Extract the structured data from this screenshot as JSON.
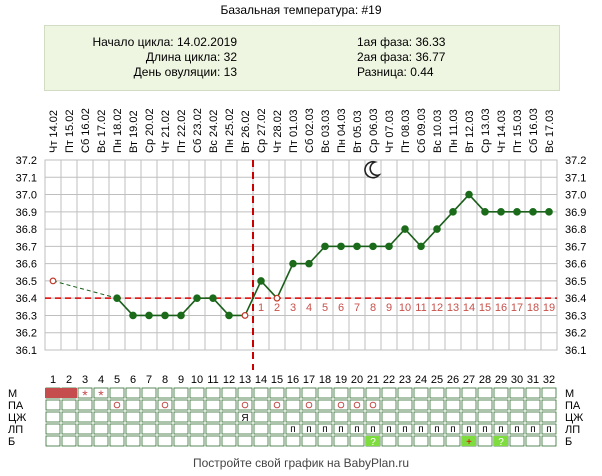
{
  "title": "Базальная температура: #19",
  "info": {
    "cycle_start_label": "Начало цикла:",
    "cycle_start": "14.02.2019",
    "cycle_length_label": "Длина цикла:",
    "cycle_length": "32",
    "ovulation_day_label": "День овуляции:",
    "ovulation_day": "13",
    "phase1_label": "1ая фаза:",
    "phase1": "36.33",
    "phase2_label": "2ая фаза:",
    "phase2": "36.77",
    "diff_label": "Разница:",
    "diff": "0.44"
  },
  "footer": "Постройте свой график на BabyPlan.ru",
  "colors": {
    "line": "#1a5e1a",
    "point_fill": "#1b6b1b",
    "coverline": "#dd0000",
    "ovulation_line": "#cc0000",
    "grid": "#bfbfbf",
    "day_numbers_after": "#c8504b",
    "period": "#c64d4d",
    "ovulation_test": "#7fdc3f"
  },
  "chart_data": {
    "type": "line",
    "ylim": [
      36.1,
      37.2
    ],
    "yticks": [
      "36.1",
      "36.2",
      "36.3",
      "36.4",
      "36.5",
      "36.6",
      "36.7",
      "36.8",
      "36.9",
      "37.0",
      "37.1",
      "37.2"
    ],
    "cycle_days": [
      "1",
      "2",
      "3",
      "4",
      "5",
      "6",
      "7",
      "8",
      "9",
      "10",
      "11",
      "12",
      "13",
      "14",
      "15",
      "16",
      "17",
      "18",
      "19",
      "20",
      "21",
      "22",
      "23",
      "24",
      "25",
      "26",
      "27",
      "28",
      "29",
      "30",
      "31",
      "32"
    ],
    "weekdays": [
      "Чт",
      "Пт",
      "Сб",
      "Вс",
      "Пн",
      "Вт",
      "Ср",
      "Чт",
      "Пт",
      "Сб",
      "Вс",
      "Пн",
      "Вт",
      "Ср",
      "Чт",
      "Пт",
      "Сб",
      "Вс",
      "Пн",
      "Вт",
      "Ср",
      "Чт",
      "Пт",
      "Сб",
      "Вс",
      "Пн",
      "Вт",
      "Ср",
      "Чт",
      "Пт",
      "Сб",
      "Вс"
    ],
    "dates": [
      "14.02",
      "15.02",
      "16.02",
      "17.02",
      "18.02",
      "19.02",
      "20.02",
      "21.02",
      "22.02",
      "23.02",
      "24.02",
      "25.02",
      "26.02",
      "27.02",
      "28.02",
      "01.03",
      "02.03",
      "03.03",
      "04.03",
      "05.03",
      "06.03",
      "07.03",
      "08.03",
      "09.03",
      "10.03",
      "11.03",
      "12.03",
      "13.03",
      "14.03",
      "15.03",
      "16.03",
      "17.03"
    ],
    "temperatures": [
      36.5,
      null,
      null,
      null,
      36.4,
      36.3,
      36.3,
      36.3,
      36.3,
      36.4,
      36.4,
      36.3,
      36.3,
      36.5,
      36.4,
      36.6,
      36.6,
      36.7,
      36.7,
      36.7,
      36.7,
      36.7,
      36.8,
      36.7,
      36.8,
      36.9,
      37.0,
      36.9,
      36.9,
      36.9,
      36.9,
      36.9
    ],
    "hollow_points": [
      1,
      13,
      15
    ],
    "coverline": 36.4,
    "ovulation_day": 13,
    "post_ovulation_numbers": [
      "1",
      "2",
      "3",
      "4",
      "5",
      "6",
      "7",
      "8",
      "9",
      "10",
      "11",
      "12",
      "13",
      "14",
      "15",
      "16",
      "17",
      "18",
      "19"
    ],
    "moon_day": 21,
    "rows": {
      "labels": [
        "М",
        "ПА",
        "ЦЖ",
        "ЛП",
        "Б"
      ],
      "period_days": [
        1,
        2
      ],
      "period_marks": [
        {
          "day": 3,
          "mark": "*"
        },
        {
          "day": 4,
          "mark": "*"
        }
      ],
      "pa_circles": [
        5,
        8,
        13,
        15,
        17,
        19,
        20,
        21
      ],
      "cm_marks": [
        {
          "day": 13,
          "mark": "Я"
        }
      ],
      "lp_days": [
        16,
        17,
        18,
        19,
        20,
        21,
        22,
        23,
        24,
        25,
        26,
        27,
        28,
        29,
        30,
        31,
        32
      ],
      "lp_mark": "п",
      "b_marks": [
        {
          "day": 21,
          "mark": "?"
        },
        {
          "day": 27,
          "mark": "+"
        },
        {
          "day": 29,
          "mark": "?"
        }
      ]
    }
  }
}
